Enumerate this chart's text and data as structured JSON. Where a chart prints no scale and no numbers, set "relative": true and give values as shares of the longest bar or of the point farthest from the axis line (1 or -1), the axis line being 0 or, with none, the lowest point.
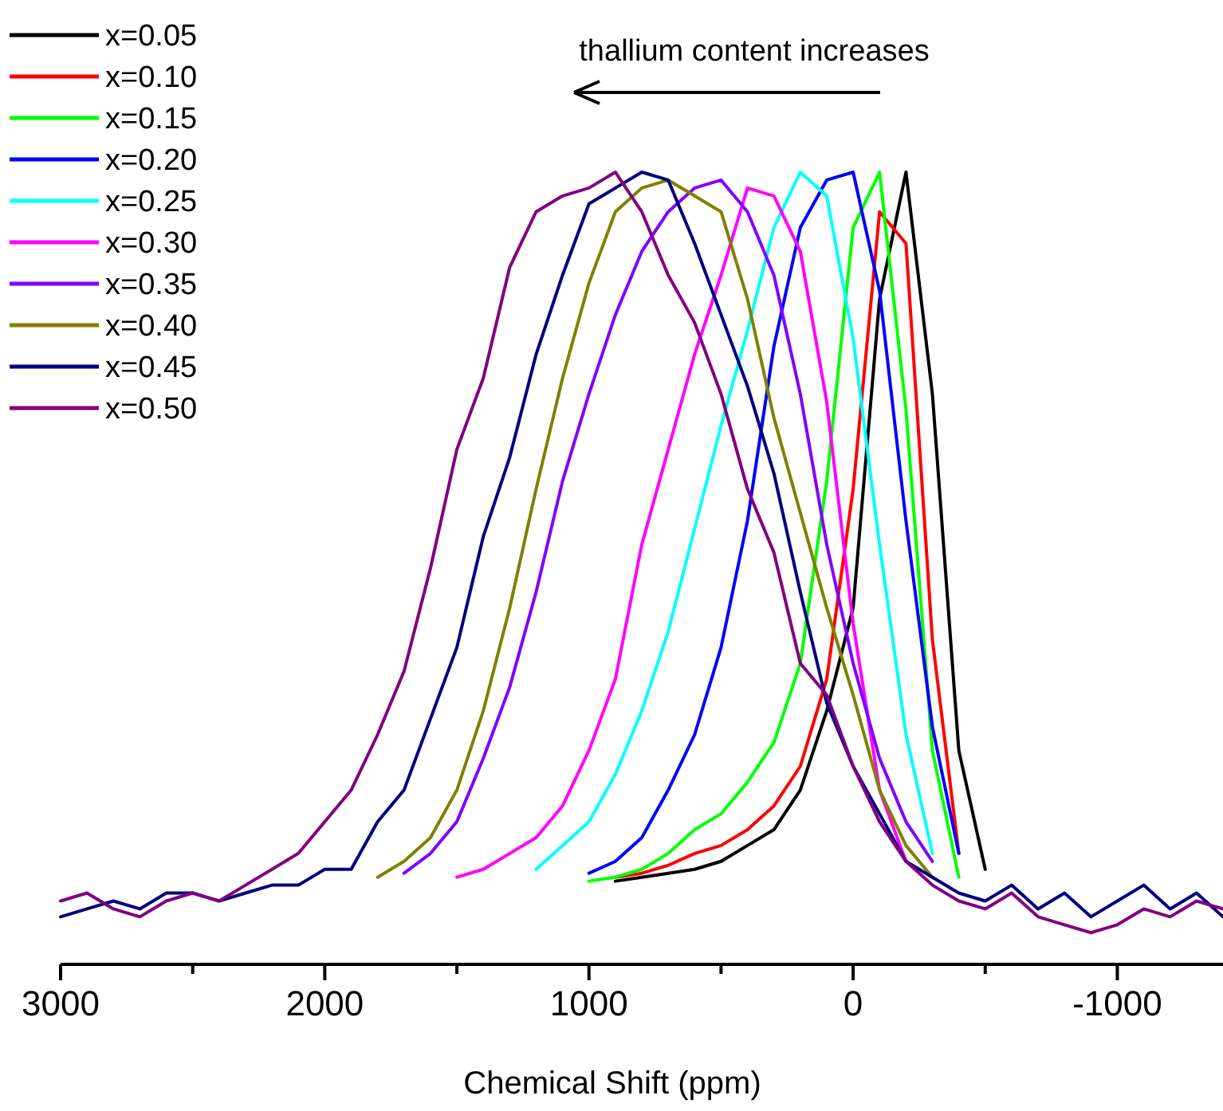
{
  "chart_data": {
    "type": "line",
    "relative": true,
    "xlabel": "Chemical Shift (ppm)",
    "xlim": [
      3000,
      -1400
    ],
    "xticks": [
      3000,
      {
        "value": 2500,
        "label": null
      },
      2000,
      {
        "value": 1500,
        "label": null
      },
      1000,
      {
        "value": 500,
        "label": null
      },
      0,
      {
        "value": -500,
        "label": null
      },
      -1000
    ],
    "tick_labels": "x",
    "legend": "top left",
    "grid": false,
    "marker": "none",
    "line_style": "solid",
    "annotations": [
      "thallium content increases"
    ],
    "x": [
      3000,
      2900,
      2800,
      2700,
      2600,
      2500,
      2400,
      2300,
      2200,
      2100,
      2000,
      1900,
      1800,
      1700,
      1600,
      1500,
      1400,
      1300,
      1200,
      1100,
      1000,
      900,
      800,
      700,
      600,
      500,
      400,
      300,
      200,
      100,
      0,
      -100,
      -200,
      -300,
      -400,
      -500,
      -600,
      -700,
      -800,
      -900,
      -1000,
      -1100,
      -1200,
      -1300,
      -1400
    ],
    "series": [
      {
        "name": "x=0.05",
        "color": "#000000",
        "values": [
          null,
          null,
          null,
          null,
          null,
          null,
          null,
          null,
          null,
          null,
          null,
          null,
          null,
          null,
          null,
          null,
          null,
          null,
          null,
          null,
          null,
          0.105,
          0.11,
          0.115,
          0.12,
          0.13,
          0.15,
          0.17,
          0.22,
          0.32,
          0.45,
          0.84,
          1.0,
          0.72,
          0.27,
          0.12,
          null,
          null,
          null,
          null,
          null,
          null,
          null,
          null,
          null
        ]
      },
      {
        "name": "x=0.10",
        "color": "#ff0000",
        "values": [
          null,
          null,
          null,
          null,
          null,
          null,
          null,
          null,
          null,
          null,
          null,
          null,
          null,
          null,
          null,
          null,
          null,
          null,
          null,
          null,
          null,
          0.11,
          0.115,
          0.125,
          0.14,
          0.15,
          0.17,
          0.2,
          0.25,
          0.36,
          0.6,
          0.95,
          0.91,
          0.41,
          0.14,
          null,
          null,
          null,
          null,
          null,
          null,
          null,
          null,
          null,
          null
        ]
      },
      {
        "name": "x=0.15",
        "color": "#00ff00",
        "values": [
          null,
          null,
          null,
          null,
          null,
          null,
          null,
          null,
          null,
          null,
          null,
          null,
          null,
          null,
          null,
          null,
          null,
          null,
          null,
          null,
          0.105,
          0.11,
          0.12,
          0.14,
          0.17,
          0.19,
          0.23,
          0.28,
          0.38,
          0.61,
          0.93,
          1.0,
          0.7,
          0.27,
          0.11,
          null,
          null,
          null,
          null,
          null,
          null,
          null,
          null,
          null,
          null
        ]
      },
      {
        "name": "x=0.20",
        "color": "#0000ff",
        "values": [
          null,
          null,
          null,
          null,
          null,
          null,
          null,
          null,
          null,
          null,
          null,
          null,
          null,
          null,
          null,
          null,
          null,
          null,
          null,
          null,
          0.115,
          0.13,
          0.16,
          0.22,
          0.29,
          0.4,
          0.56,
          0.78,
          0.93,
          0.99,
          1.0,
          0.85,
          0.56,
          0.3,
          0.14,
          null,
          null,
          null,
          null,
          null,
          null,
          null,
          null,
          null,
          null
        ]
      },
      {
        "name": "x=0.25",
        "color": "#00ffff",
        "values": [
          null,
          null,
          null,
          null,
          null,
          null,
          null,
          null,
          null,
          null,
          null,
          null,
          null,
          null,
          null,
          null,
          null,
          null,
          0.12,
          0.15,
          0.18,
          0.24,
          0.32,
          0.42,
          0.55,
          0.68,
          0.8,
          0.93,
          1.0,
          0.97,
          0.79,
          0.53,
          0.29,
          0.14,
          null,
          null,
          null,
          null,
          null,
          null,
          null,
          null,
          null,
          null,
          null
        ]
      },
      {
        "name": "x=0.30",
        "color": "#ff00ff",
        "values": [
          null,
          null,
          null,
          null,
          null,
          null,
          null,
          null,
          null,
          null,
          null,
          null,
          null,
          null,
          null,
          0.11,
          0.12,
          0.14,
          0.16,
          0.2,
          0.27,
          0.36,
          0.53,
          0.65,
          0.77,
          0.87,
          0.98,
          0.97,
          0.9,
          0.71,
          0.43,
          0.22,
          0.13,
          null,
          null,
          null,
          null,
          null,
          null,
          null,
          null,
          null,
          null,
          null,
          null
        ]
      },
      {
        "name": "x=0.35",
        "color": "#8000ff",
        "values": [
          null,
          null,
          null,
          null,
          null,
          null,
          null,
          null,
          null,
          null,
          null,
          null,
          null,
          0.115,
          0.14,
          0.18,
          0.26,
          0.35,
          0.47,
          0.61,
          0.72,
          0.82,
          0.9,
          0.95,
          0.98,
          0.99,
          0.95,
          0.87,
          0.72,
          0.53,
          0.38,
          0.26,
          0.18,
          0.13,
          null,
          null,
          null,
          null,
          null,
          null,
          null,
          null,
          null,
          null,
          null
        ]
      },
      {
        "name": "x=0.40",
        "color": "#808000",
        "values": [
          null,
          null,
          null,
          null,
          null,
          null,
          null,
          null,
          null,
          null,
          null,
          null,
          0.11,
          0.13,
          0.16,
          0.22,
          0.32,
          0.45,
          0.6,
          0.74,
          0.86,
          0.95,
          0.98,
          0.99,
          0.97,
          0.95,
          0.84,
          0.69,
          0.57,
          0.45,
          0.34,
          0.22,
          0.15,
          0.11,
          null,
          null,
          null,
          null,
          null,
          null,
          null,
          null,
          null,
          null,
          null
        ]
      },
      {
        "name": "x=0.45",
        "color": "#000080",
        "values": [
          0.06,
          0.07,
          0.08,
          0.07,
          0.09,
          0.09,
          0.08,
          0.09,
          0.1,
          0.1,
          0.12,
          0.12,
          0.18,
          0.22,
          0.31,
          0.4,
          0.54,
          0.64,
          0.77,
          0.87,
          0.96,
          0.98,
          1.0,
          0.99,
          0.91,
          0.82,
          0.73,
          0.62,
          0.47,
          0.33,
          0.25,
          0.19,
          0.13,
          0.11,
          0.09,
          0.08,
          0.1,
          0.07,
          0.09,
          0.06,
          0.08,
          0.1,
          0.07,
          0.09,
          0.06
        ]
      },
      {
        "name": "x=0.50",
        "color": "#800080",
        "values": [
          0.08,
          0.09,
          0.07,
          0.06,
          0.08,
          0.09,
          0.08,
          0.1,
          0.12,
          0.14,
          0.18,
          0.22,
          0.29,
          0.37,
          0.5,
          0.65,
          0.74,
          0.88,
          0.95,
          0.97,
          0.98,
          1.0,
          0.95,
          0.87,
          0.81,
          0.72,
          0.6,
          0.52,
          0.38,
          0.34,
          0.25,
          0.18,
          0.13,
          0.1,
          0.08,
          0.07,
          0.09,
          0.06,
          0.05,
          0.04,
          0.05,
          0.07,
          0.06,
          0.08,
          0.07
        ]
      }
    ]
  }
}
